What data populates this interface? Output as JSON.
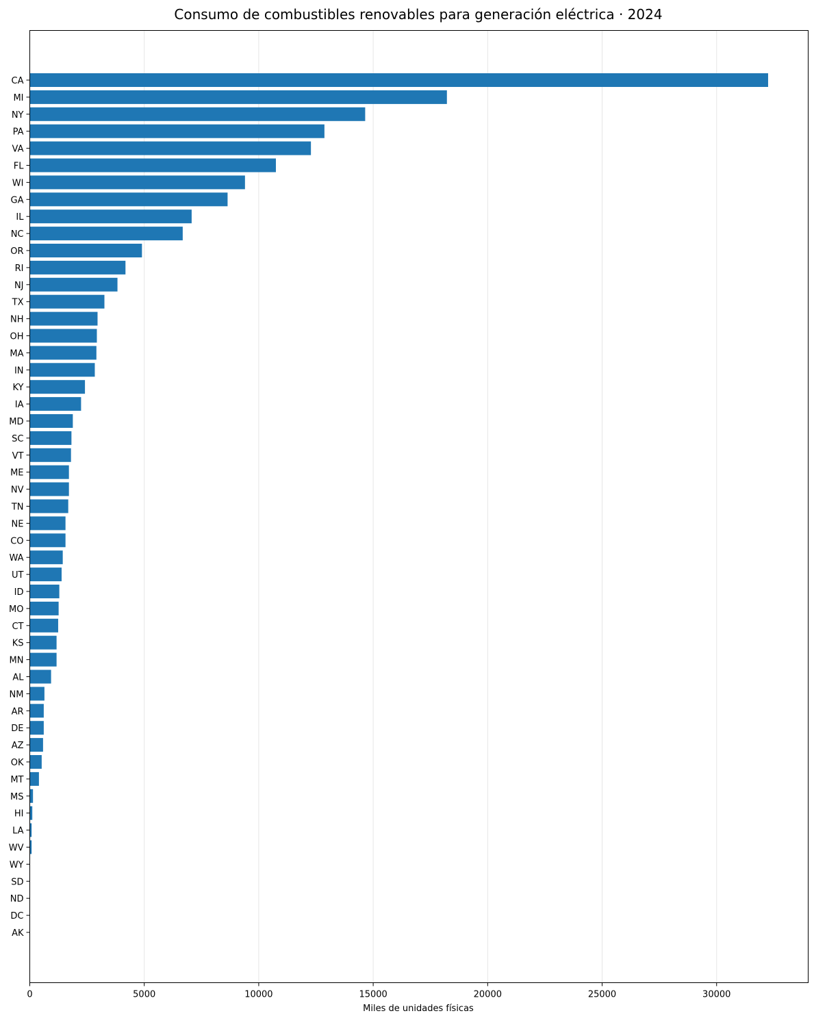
{
  "chart_data": {
    "type": "bar",
    "orientation": "horizontal",
    "title": "Consumo de combustibles renovables para generación eléctrica · 2024",
    "xlabel": "Miles de unidades físicas",
    "ylabel": "",
    "xlim": [
      0,
      34000
    ],
    "xticks": [
      0,
      5000,
      10000,
      15000,
      20000,
      25000,
      30000
    ],
    "grid": "vertical",
    "bar_color": "#1f77b4",
    "categories": [
      "CA",
      "MI",
      "NY",
      "PA",
      "VA",
      "FL",
      "WI",
      "GA",
      "IL",
      "NC",
      "OR",
      "RI",
      "NJ",
      "TX",
      "NH",
      "OH",
      "MA",
      "IN",
      "KY",
      "IA",
      "MD",
      "SC",
      "VT",
      "ME",
      "NV",
      "TN",
      "NE",
      "CO",
      "WA",
      "UT",
      "ID",
      "MO",
      "CT",
      "KS",
      "MN",
      "AL",
      "NM",
      "AR",
      "DE",
      "AZ",
      "OK",
      "MT",
      "MS",
      "HI",
      "LA",
      "WV",
      "WY",
      "SD",
      "ND",
      "DC",
      "AK"
    ],
    "values": [
      32250,
      18220,
      14650,
      12870,
      12280,
      10750,
      9400,
      8640,
      7070,
      6680,
      4900,
      4180,
      3830,
      3260,
      2960,
      2930,
      2910,
      2840,
      2410,
      2240,
      1880,
      1820,
      1800,
      1710,
      1710,
      1680,
      1560,
      1560,
      1440,
      1390,
      1290,
      1260,
      1240,
      1170,
      1170,
      930,
      640,
      610,
      610,
      580,
      520,
      400,
      140,
      110,
      80,
      80,
      0,
      0,
      0,
      0,
      0
    ]
  }
}
